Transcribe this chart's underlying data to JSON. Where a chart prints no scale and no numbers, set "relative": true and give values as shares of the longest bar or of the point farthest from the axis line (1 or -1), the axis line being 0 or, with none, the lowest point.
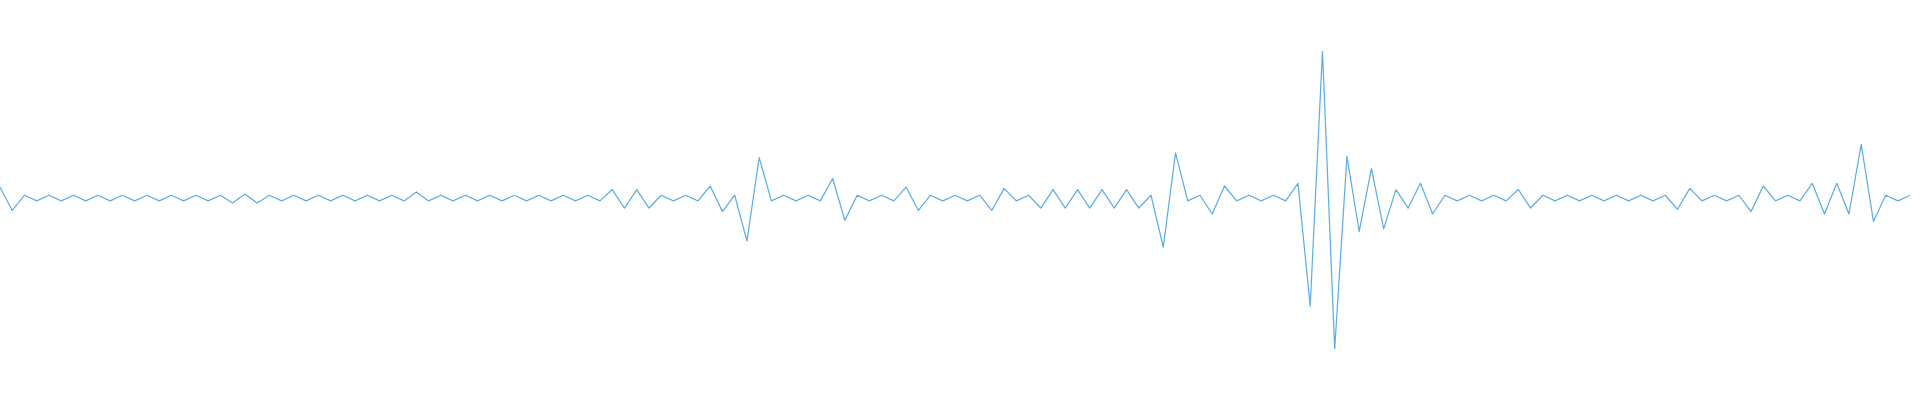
{
  "chart_data": {
    "type": "line",
    "relative": true,
    "color": "#5eaee3",
    "categories": [
      null,
      null,
      null,
      null,
      null,
      null,
      null,
      null,
      null,
      null,
      null,
      null,
      null,
      null,
      null,
      null,
      null,
      null,
      null,
      null,
      null,
      null,
      null,
      null,
      null,
      null,
      null,
      null,
      null,
      null,
      null,
      null,
      null,
      null,
      null,
      null,
      null,
      null,
      null,
      null,
      null,
      null,
      null,
      null,
      null,
      null,
      null,
      null,
      null,
      null,
      null,
      null,
      null,
      null,
      null,
      null,
      null,
      null,
      null,
      null,
      null,
      null,
      null,
      null,
      null,
      null,
      null,
      null,
      null,
      null,
      null,
      null,
      null,
      null,
      null,
      null,
      null,
      null,
      null,
      null,
      null,
      null,
      null,
      null,
      null,
      null,
      null,
      null,
      null,
      null,
      null,
      null,
      null,
      null,
      null,
      null,
      null,
      null,
      null,
      null,
      null,
      null,
      null,
      null,
      null,
      null,
      null,
      null,
      null,
      null,
      null,
      null,
      null,
      null,
      null,
      null,
      null,
      null,
      null,
      null,
      null,
      null,
      null,
      null,
      null,
      null,
      null,
      null,
      null,
      null,
      null,
      null,
      null,
      null,
      null,
      null,
      null,
      null,
      null,
      null,
      null,
      null,
      null,
      null,
      null,
      null,
      null,
      null,
      null,
      null,
      null,
      null,
      null,
      null,
      null,
      null,
      null
    ],
    "values": [
      0.543,
      0.465,
      0.516,
      0.497,
      0.516,
      0.497,
      0.516,
      0.497,
      0.516,
      0.497,
      0.516,
      0.497,
      0.516,
      0.497,
      0.516,
      0.497,
      0.516,
      0.497,
      0.516,
      0.49,
      0.52,
      0.49,
      0.516,
      0.497,
      0.516,
      0.497,
      0.516,
      0.497,
      0.516,
      0.497,
      0.516,
      0.497,
      0.516,
      0.497,
      0.527,
      0.497,
      0.516,
      0.497,
      0.516,
      0.497,
      0.516,
      0.497,
      0.516,
      0.497,
      0.516,
      0.497,
      0.516,
      0.497,
      0.516,
      0.497,
      0.535,
      0.473,
      0.535,
      0.473,
      0.516,
      0.497,
      0.516,
      0.497,
      0.547,
      0.461,
      0.516,
      0.362,
      0.642,
      0.497,
      0.516,
      0.497,
      0.516,
      0.497,
      0.572,
      0.432,
      0.516,
      0.497,
      0.516,
      0.497,
      0.543,
      0.465,
      0.516,
      0.497,
      0.516,
      0.497,
      0.516,
      0.465,
      0.539,
      0.497,
      0.516,
      0.473,
      0.535,
      0.473,
      0.535,
      0.473,
      0.535,
      0.473,
      0.535,
      0.473,
      0.516,
      0.342,
      0.658,
      0.497,
      0.516,
      0.453,
      0.547,
      0.497,
      0.516,
      0.497,
      0.516,
      0.497,
      0.556,
      0.144,
      1.0,
      0.0,
      0.646,
      0.395,
      0.605,
      0.403,
      0.535,
      0.473,
      0.556,
      0.453,
      0.516,
      0.497,
      0.516,
      0.497,
      0.516,
      0.497,
      0.535,
      0.473,
      0.516,
      0.497,
      0.516,
      0.497,
      0.516,
      0.497,
      0.516,
      0.497,
      0.516,
      0.497,
      0.516,
      0.469,
      0.539,
      0.497,
      0.516,
      0.497,
      0.516,
      0.461,
      0.547,
      0.497,
      0.516,
      0.497,
      0.556,
      0.453,
      0.556,
      0.453,
      0.687,
      0.428,
      0.516,
      0.497,
      0.516
    ]
  }
}
